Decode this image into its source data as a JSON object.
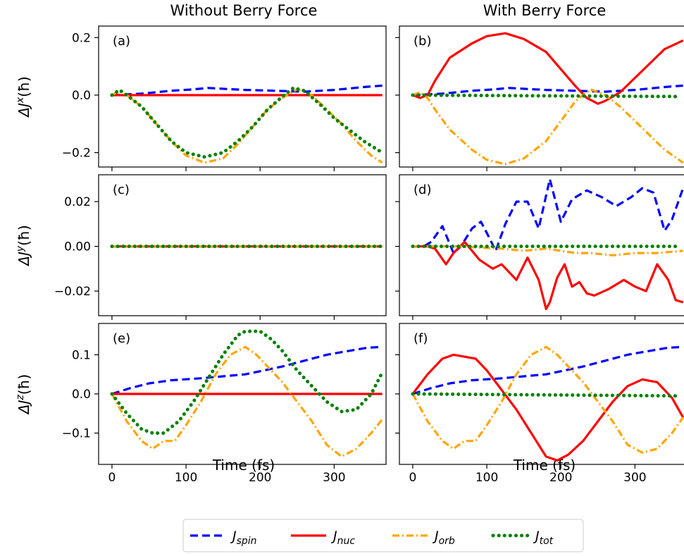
{
  "figure": {
    "column_titles": [
      "Without Berry Force",
      "With Berry Force"
    ]
  },
  "legend": {
    "placement": "bottom-center",
    "entries": [
      {
        "key": "spin",
        "main": "J",
        "sub": "spin",
        "color": "#0000ff",
        "style": "dashed"
      },
      {
        "key": "nuc",
        "main": "J",
        "sub": "nuc",
        "color": "#ff0000",
        "style": "solid"
      },
      {
        "key": "orb",
        "main": "J",
        "sub": "orb",
        "color": "#ffa500",
        "style": "dashdot"
      },
      {
        "key": "tot",
        "main": "J",
        "sub": "tot",
        "color": "#008000",
        "style": "dotted"
      }
    ]
  },
  "chart_data": [
    {
      "type": "line",
      "panel": "(a)",
      "ylabel": {
        "prefix": "ΔJ",
        "sup": "x",
        "suffix": "(ħ)"
      },
      "xlim": [
        -18,
        370
      ],
      "ylim": [
        -0.25,
        0.24
      ],
      "yticks": [
        -0.2,
        0.0,
        0.2
      ],
      "ytick_labels": [
        "−0.2",
        "0.0",
        "0.2"
      ],
      "series": [
        {
          "key": "spin",
          "x": [
            0,
            40,
            80,
            110,
            130,
            150,
            180,
            220,
            260,
            300,
            340,
            365
          ],
          "y": [
            0,
            0.005,
            0.015,
            0.02,
            0.025,
            0.022,
            0.018,
            0.015,
            0.012,
            0.018,
            0.028,
            0.033
          ]
        },
        {
          "key": "nuc",
          "x": [
            0,
            365
          ],
          "y": [
            0,
            0
          ]
        },
        {
          "key": "orb",
          "x": [
            0,
            10,
            20,
            40,
            60,
            80,
            100,
            125,
            150,
            170,
            190,
            210,
            230,
            250,
            270,
            290,
            310,
            330,
            350,
            365
          ],
          "y": [
            0,
            0.015,
            0,
            -0.04,
            -0.1,
            -0.16,
            -0.21,
            -0.235,
            -0.22,
            -0.17,
            -0.11,
            -0.05,
            -0.01,
            0.02,
            0.0,
            -0.05,
            -0.1,
            -0.16,
            -0.21,
            -0.235
          ]
        },
        {
          "key": "tot",
          "x": [
            0,
            10,
            20,
            40,
            60,
            80,
            100,
            125,
            150,
            170,
            190,
            210,
            230,
            245,
            260,
            280,
            300,
            320,
            340,
            365
          ],
          "y": [
            0,
            0.018,
            0,
            -0.04,
            -0.1,
            -0.16,
            -0.2,
            -0.215,
            -0.2,
            -0.16,
            -0.11,
            -0.05,
            -0.005,
            0.025,
            0.015,
            -0.03,
            -0.08,
            -0.12,
            -0.16,
            -0.2
          ]
        }
      ]
    },
    {
      "type": "line",
      "panel": "(b)",
      "ylabel": null,
      "xlim": [
        -18,
        370
      ],
      "ylim": [
        -0.25,
        0.24
      ],
      "yticks": [
        -0.2,
        0.0,
        0.2
      ],
      "ytick_labels": [
        "",
        "",
        ""
      ],
      "series": [
        {
          "key": "spin",
          "x": [
            0,
            40,
            80,
            110,
            130,
            150,
            180,
            220,
            260,
            300,
            340,
            365
          ],
          "y": [
            0,
            0.005,
            0.015,
            0.02,
            0.025,
            0.022,
            0.018,
            0.015,
            0.012,
            0.018,
            0.028,
            0.033
          ]
        },
        {
          "key": "nuc",
          "x": [
            0,
            10,
            20,
            30,
            50,
            80,
            100,
            125,
            150,
            180,
            200,
            220,
            235,
            250,
            260,
            280,
            300,
            320,
            340,
            365
          ],
          "y": [
            0,
            -0.01,
            0,
            0.05,
            0.13,
            0.18,
            0.205,
            0.215,
            0.195,
            0.15,
            0.09,
            0.03,
            -0.01,
            -0.03,
            -0.02,
            0.01,
            0.06,
            0.11,
            0.16,
            0.19
          ]
        },
        {
          "key": "orb",
          "x": [
            0,
            10,
            20,
            30,
            50,
            80,
            100,
            125,
            150,
            180,
            200,
            220,
            240,
            260,
            280,
            300,
            320,
            340,
            365
          ],
          "y": [
            0,
            0.01,
            -0.01,
            -0.05,
            -0.12,
            -0.19,
            -0.225,
            -0.24,
            -0.22,
            -0.16,
            -0.09,
            -0.02,
            0.02,
            0.0,
            -0.04,
            -0.09,
            -0.14,
            -0.19,
            -0.235
          ]
        },
        {
          "key": "tot",
          "x": [
            0,
            360
          ],
          "y": [
            0,
            -0.005
          ]
        }
      ]
    },
    {
      "type": "line",
      "panel": "(c)",
      "ylabel": {
        "prefix": "ΔJ",
        "sup": "y",
        "suffix": "(ħ)"
      },
      "xlim": [
        -18,
        370
      ],
      "ylim": [
        -0.031,
        0.032
      ],
      "yticks": [
        -0.02,
        0.0,
        0.02
      ],
      "ytick_labels": [
        "−0.02",
        "0.00",
        "0.02"
      ],
      "series": [
        {
          "key": "spin",
          "x": [
            0,
            365
          ],
          "y": [
            0,
            0
          ]
        },
        {
          "key": "nuc",
          "x": [
            0,
            365
          ],
          "y": [
            0,
            0
          ]
        },
        {
          "key": "orb",
          "x": [
            0,
            365
          ],
          "y": [
            0,
            0
          ]
        },
        {
          "key": "tot",
          "x": [
            0,
            365
          ],
          "y": [
            0,
            0
          ]
        }
      ]
    },
    {
      "type": "line",
      "panel": "(d)",
      "ylabel": null,
      "xlim": [
        -18,
        370
      ],
      "ylim": [
        -0.031,
        0.032
      ],
      "yticks": [
        -0.02,
        0.0,
        0.02
      ],
      "ytick_labels": [
        "",
        "",
        ""
      ],
      "series": [
        {
          "key": "spin",
          "x": [
            0,
            15,
            25,
            40,
            55,
            65,
            80,
            92,
            100,
            112,
            125,
            140,
            155,
            170,
            185,
            200,
            215,
            235,
            255,
            275,
            295,
            310,
            325,
            340,
            350,
            365
          ],
          "y": [
            0,
            0,
            0.002,
            0.009,
            -0.003,
            0,
            0.008,
            0.011,
            0.006,
            -0.002,
            0.01,
            0.02,
            0.02,
            0.008,
            0.03,
            0.011,
            0.021,
            0.025,
            0.022,
            0.018,
            0.022,
            0.026,
            0.024,
            0.007,
            0.012,
            0.026
          ]
        },
        {
          "key": "nuc",
          "x": [
            0,
            20,
            30,
            45,
            55,
            70,
            90,
            108,
            120,
            140,
            155,
            170,
            180,
            185,
            195,
            205,
            215,
            225,
            235,
            245,
            265,
            285,
            300,
            315,
            330,
            345,
            355,
            365
          ],
          "y": [
            0,
            0,
            -0.001,
            -0.008,
            -0.003,
            0.002,
            -0.006,
            -0.01,
            -0.008,
            -0.015,
            -0.005,
            -0.015,
            -0.028,
            -0.025,
            -0.014,
            -0.008,
            -0.018,
            -0.016,
            -0.021,
            -0.022,
            -0.019,
            -0.015,
            -0.018,
            -0.02,
            -0.008,
            -0.015,
            -0.024,
            -0.025
          ]
        },
        {
          "key": "orb",
          "x": [
            0,
            60,
            120,
            150,
            180,
            200,
            220,
            240,
            270,
            300,
            330,
            365
          ],
          "y": [
            0,
            0,
            -0.001,
            -0.002,
            -0.001,
            -0.002,
            -0.003,
            -0.003,
            -0.004,
            -0.003,
            -0.003,
            -0.002
          ]
        },
        {
          "key": "tot",
          "x": [
            0,
            360
          ],
          "y": [
            0,
            0
          ]
        }
      ]
    },
    {
      "type": "line",
      "panel": "(e)",
      "ylabel": {
        "prefix": "ΔJ",
        "sup": "z",
        "suffix": "(ħ)"
      },
      "xlim": [
        -18,
        370
      ],
      "ylim": [
        -0.18,
        0.18
      ],
      "yticks": [
        -0.1,
        0.0,
        0.1
      ],
      "ytick_labels": [
        "−0.1",
        "0.0",
        "0.1"
      ],
      "series": [
        {
          "key": "spin",
          "x": [
            0,
            25,
            50,
            80,
            120,
            150,
            180,
            200,
            230,
            260,
            290,
            320,
            345,
            365
          ],
          "y": [
            0,
            0.015,
            0.027,
            0.035,
            0.04,
            0.045,
            0.05,
            0.058,
            0.07,
            0.085,
            0.1,
            0.11,
            0.118,
            0.12
          ]
        },
        {
          "key": "nuc",
          "x": [
            0,
            365
          ],
          "y": [
            0,
            0
          ]
        },
        {
          "key": "orb",
          "x": [
            0,
            20,
            40,
            55,
            70,
            85,
            100,
            120,
            140,
            160,
            180,
            195,
            210,
            230,
            250,
            270,
            290,
            310,
            330,
            350,
            365
          ],
          "y": [
            0,
            -0.07,
            -0.12,
            -0.14,
            -0.12,
            -0.12,
            -0.08,
            -0.02,
            0.05,
            0.1,
            0.12,
            0.1,
            0.07,
            0.03,
            -0.02,
            -0.07,
            -0.13,
            -0.16,
            -0.14,
            -0.1,
            -0.065
          ]
        },
        {
          "key": "tot",
          "x": [
            0,
            20,
            40,
            55,
            70,
            90,
            110,
            130,
            150,
            170,
            180,
            200,
            215,
            230,
            250,
            270,
            290,
            310,
            330,
            350,
            365
          ],
          "y": [
            0,
            -0.05,
            -0.09,
            -0.1,
            -0.1,
            -0.07,
            -0.02,
            0.04,
            0.1,
            0.15,
            0.16,
            0.16,
            0.14,
            0.11,
            0.06,
            0.02,
            -0.02,
            -0.045,
            -0.04,
            0.0,
            0.055
          ]
        }
      ]
    },
    {
      "type": "line",
      "panel": "(f)",
      "ylabel": null,
      "xlim": [
        -18,
        370
      ],
      "ylim": [
        -0.18,
        0.18
      ],
      "yticks": [
        -0.1,
        0.0,
        0.1
      ],
      "ytick_labels": [
        "",
        "",
        ""
      ],
      "series": [
        {
          "key": "spin",
          "x": [
            0,
            25,
            50,
            80,
            120,
            150,
            180,
            200,
            230,
            260,
            290,
            320,
            345,
            365
          ],
          "y": [
            0,
            0.015,
            0.027,
            0.035,
            0.04,
            0.045,
            0.05,
            0.058,
            0.07,
            0.085,
            0.1,
            0.11,
            0.118,
            0.12
          ]
        },
        {
          "key": "nuc",
          "x": [
            0,
            20,
            40,
            55,
            70,
            85,
            100,
            120,
            140,
            160,
            180,
            195,
            210,
            230,
            250,
            270,
            290,
            310,
            330,
            350,
            365
          ],
          "y": [
            0,
            0.05,
            0.09,
            0.1,
            0.095,
            0.09,
            0.06,
            0.01,
            -0.04,
            -0.1,
            -0.16,
            -0.17,
            -0.155,
            -0.12,
            -0.07,
            -0.02,
            0.02,
            0.037,
            0.03,
            -0.01,
            -0.06
          ]
        },
        {
          "key": "orb",
          "x": [
            0,
            20,
            40,
            55,
            70,
            85,
            100,
            120,
            140,
            160,
            180,
            195,
            210,
            230,
            250,
            270,
            290,
            310,
            330,
            350,
            365
          ],
          "y": [
            0,
            -0.07,
            -0.12,
            -0.14,
            -0.12,
            -0.12,
            -0.08,
            -0.02,
            0.05,
            0.1,
            0.12,
            0.1,
            0.07,
            0.03,
            -0.02,
            -0.07,
            -0.13,
            -0.15,
            -0.14,
            -0.1,
            -0.06
          ]
        },
        {
          "key": "tot",
          "x": [
            0,
            360
          ],
          "y": [
            0,
            -0.005
          ]
        }
      ]
    }
  ],
  "x_axis": {
    "ticks": [
      0,
      100,
      200,
      300
    ],
    "tick_labels": [
      "0",
      "100",
      "200",
      "300"
    ],
    "label": "Time (fs)"
  }
}
